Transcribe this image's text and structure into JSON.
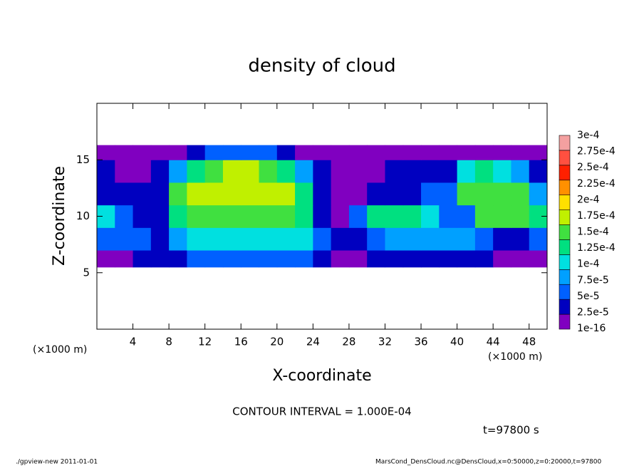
{
  "chart_data": {
    "type": "heatmap",
    "title": "density of cloud",
    "x_label": "X-coordinate",
    "y_label": "Z-coordinate",
    "x_unit": "(×1000 m)",
    "y_unit": "(×1000 m)",
    "xlim": [
      0,
      50
    ],
    "ylim": [
      0,
      20
    ],
    "xticks": [
      4,
      8,
      12,
      16,
      20,
      24,
      28,
      32,
      36,
      40,
      44,
      48
    ],
    "yticks": [
      5,
      10,
      15
    ],
    "xbins": [
      0,
      2,
      4,
      6,
      8,
      10,
      12,
      14,
      16,
      18,
      20,
      22,
      24,
      26,
      28,
      30,
      32,
      34,
      36,
      38,
      40,
      42,
      44,
      46,
      48,
      50
    ],
    "zbins": [
      5.5,
      7,
      9,
      11,
      13,
      15,
      16.3
    ],
    "z": [
      [
        2e-05,
        2e-05,
        3e-05,
        3e-05,
        3e-05,
        6e-05,
        6e-05,
        6e-05,
        6e-05,
        6e-05,
        6e-05,
        6e-05,
        3e-05,
        2e-05,
        2e-05,
        3e-05,
        3e-05,
        3e-05,
        3e-05,
        3e-05,
        3e-05,
        3e-05,
        2e-05,
        2e-05,
        2e-05
      ],
      [
        6e-05,
        6e-05,
        6e-05,
        4e-05,
        8e-05,
        0.00011,
        0.00011,
        0.00011,
        0.00011,
        0.00011,
        0.00011,
        0.00011,
        6e-05,
        4e-05,
        4e-05,
        6e-05,
        8e-05,
        8e-05,
        8e-05,
        8e-05,
        8e-05,
        6e-05,
        4e-05,
        4e-05,
        6e-05
      ],
      [
        0.00011,
        6e-05,
        4e-05,
        4e-05,
        0.00013,
        0.00016,
        0.00016,
        0.00016,
        0.00016,
        0.00016,
        0.00016,
        0.00013,
        4e-05,
        2e-05,
        6e-05,
        0.00013,
        0.00013,
        0.00013,
        0.00011,
        6e-05,
        6e-05,
        0.00016,
        0.00016,
        0.00016,
        0.00013
      ],
      [
        4e-05,
        4e-05,
        4e-05,
        4e-05,
        0.00016,
        0.00018,
        0.00018,
        0.00018,
        0.00018,
        0.00018,
        0.00018,
        0.00013,
        4e-05,
        2e-05,
        2e-05,
        4e-05,
        4e-05,
        4e-05,
        6e-05,
        6e-05,
        0.00016,
        0.00016,
        0.00016,
        0.00016,
        8e-05
      ],
      [
        4e-05,
        2e-05,
        2e-05,
        4e-05,
        8e-05,
        0.00013,
        0.00016,
        0.00018,
        0.00018,
        0.00016,
        0.00013,
        8e-05,
        4e-05,
        2e-05,
        2e-05,
        2e-05,
        4e-05,
        4e-05,
        4e-05,
        4e-05,
        0.00011,
        0.00013,
        0.00011,
        8e-05,
        4e-05
      ],
      [
        1e-05,
        1e-05,
        1e-05,
        1e-05,
        2e-05,
        4e-05,
        6e-05,
        6e-05,
        6e-05,
        6e-05,
        4e-05,
        2e-05,
        1e-05,
        1e-05,
        1e-05,
        1e-05,
        1e-05,
        1e-05,
        2e-05,
        2e-05,
        1e-05,
        2e-05,
        2e-05,
        1e-05,
        1e-05
      ]
    ],
    "levels": [
      {
        "value": 1e-16,
        "label": "1e-16"
      },
      {
        "value": 2.5e-05,
        "label": "2.5e-5"
      },
      {
        "value": 5e-05,
        "label": "5e-5"
      },
      {
        "value": 7.5e-05,
        "label": "7.5e-5"
      },
      {
        "value": 0.0001,
        "label": "1e-4"
      },
      {
        "value": 0.000125,
        "label": "1.25e-4"
      },
      {
        "value": 0.00015,
        "label": "1.5e-4"
      },
      {
        "value": 0.000175,
        "label": "1.75e-4"
      },
      {
        "value": 0.0002,
        "label": "2e-4"
      },
      {
        "value": 0.000225,
        "label": "2.25e-4"
      },
      {
        "value": 0.00025,
        "label": "2.5e-4"
      },
      {
        "value": 0.000275,
        "label": "2.75e-4"
      },
      {
        "value": 0.0003,
        "label": "3e-4"
      }
    ],
    "colors": [
      "#8000c0",
      "#0000c0",
      "#0060ff",
      "#00a0ff",
      "#00e0e0",
      "#00e080",
      "#40e040",
      "#c0f000",
      "#ffe000",
      "#ff9000",
      "#ff2000",
      "#ff5040",
      "#f4a0a0"
    ],
    "contour_note": "CONTOUR INTERVAL = 1.000E-04",
    "time_label": "t=97800 s",
    "footer_left": "./gpview-new  2011-01-01",
    "footer_right": "MarsCond_DensCloud.nc@DensCloud,x=0:50000,z=0:20000,t=97800"
  }
}
